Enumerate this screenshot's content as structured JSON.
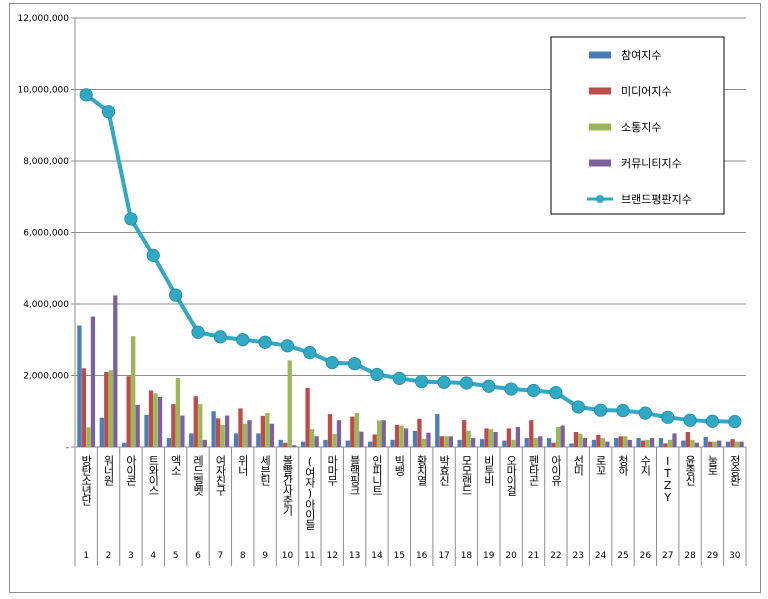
{
  "chart_data": {
    "type": "bar",
    "ylim": [
      0,
      12000000
    ],
    "yticks": [
      "-",
      "2,000,000",
      "4,000,000",
      "6,000,000",
      "8,000,000",
      "10,000,000",
      "12,000,000"
    ],
    "grid": true,
    "legend_position": "top-right",
    "categories": [
      "방탄소년단",
      "워너원",
      "아이콘",
      "트와이스",
      "엑소",
      "레드벨벳",
      "여자친구",
      "위너",
      "세븐틴",
      "볼빨간사춘기",
      "(여자)아이들",
      "마마무",
      "블랙핑크",
      "인피니트",
      "빅뱅",
      "황치열",
      "박효신",
      "모모랜드",
      "비투비",
      "오마이걸",
      "펜타곤",
      "아이유",
      "선미",
      "로꼬",
      "청하",
      "수지",
      "ITZY",
      "윤종신",
      "눌로",
      "정승환"
    ],
    "ranks": [
      "1",
      "2",
      "3",
      "4",
      "5",
      "6",
      "7",
      "8",
      "9",
      "10",
      "11",
      "12",
      "13",
      "14",
      "15",
      "16",
      "17",
      "18",
      "19",
      "20",
      "21",
      "22",
      "23",
      "24",
      "25",
      "26",
      "27",
      "28",
      "29",
      "30"
    ],
    "series": [
      {
        "name": "참여지수",
        "type": "bar",
        "color": "#4a7ebb",
        "values": [
          3400000,
          820000,
          120000,
          900000,
          250000,
          380000,
          1000000,
          380000,
          380000,
          200000,
          150000,
          200000,
          180000,
          150000,
          200000,
          450000,
          920000,
          200000,
          220000,
          180000,
          250000,
          250000,
          100000,
          200000,
          250000,
          250000,
          250000,
          180000,
          280000,
          150000
        ]
      },
      {
        "name": "미디어지수",
        "type": "bar",
        "color": "#be4b48",
        "values": [
          2200000,
          2100000,
          1980000,
          1580000,
          1200000,
          1420000,
          800000,
          1080000,
          870000,
          120000,
          1650000,
          920000,
          850000,
          350000,
          620000,
          790000,
          300000,
          750000,
          520000,
          520000,
          750000,
          120000,
          420000,
          340000,
          300000,
          180000,
          100000,
          420000,
          150000,
          220000
        ]
      },
      {
        "name": "소통지수",
        "type": "bar",
        "color": "#98b954",
        "values": [
          550000,
          2150000,
          3100000,
          1500000,
          1930000,
          1200000,
          620000,
          650000,
          950000,
          2420000,
          500000,
          360000,
          950000,
          740000,
          600000,
          230000,
          300000,
          450000,
          500000,
          200000,
          250000,
          560000,
          370000,
          250000,
          300000,
          200000,
          200000,
          200000,
          150000,
          150000
        ]
      },
      {
        "name": "커뮤니티지수",
        "type": "bar",
        "color": "#7d60a0",
        "values": [
          3650000,
          4240000,
          1180000,
          1400000,
          880000,
          200000,
          880000,
          750000,
          650000,
          50000,
          300000,
          750000,
          430000,
          750000,
          520000,
          400000,
          300000,
          250000,
          420000,
          560000,
          300000,
          600000,
          250000,
          150000,
          200000,
          250000,
          380000,
          120000,
          180000,
          150000
        ]
      },
      {
        "name": "브랜드평판지수",
        "type": "line",
        "color": "#31a9c4",
        "values": [
          9850000,
          9380000,
          6380000,
          5360000,
          4250000,
          3210000,
          3080000,
          3000000,
          2930000,
          2830000,
          2640000,
          2360000,
          2330000,
          2030000,
          1920000,
          1830000,
          1810000,
          1790000,
          1700000,
          1620000,
          1580000,
          1520000,
          1120000,
          1030000,
          1020000,
          950000,
          830000,
          750000,
          720000,
          710000
        ]
      }
    ]
  }
}
